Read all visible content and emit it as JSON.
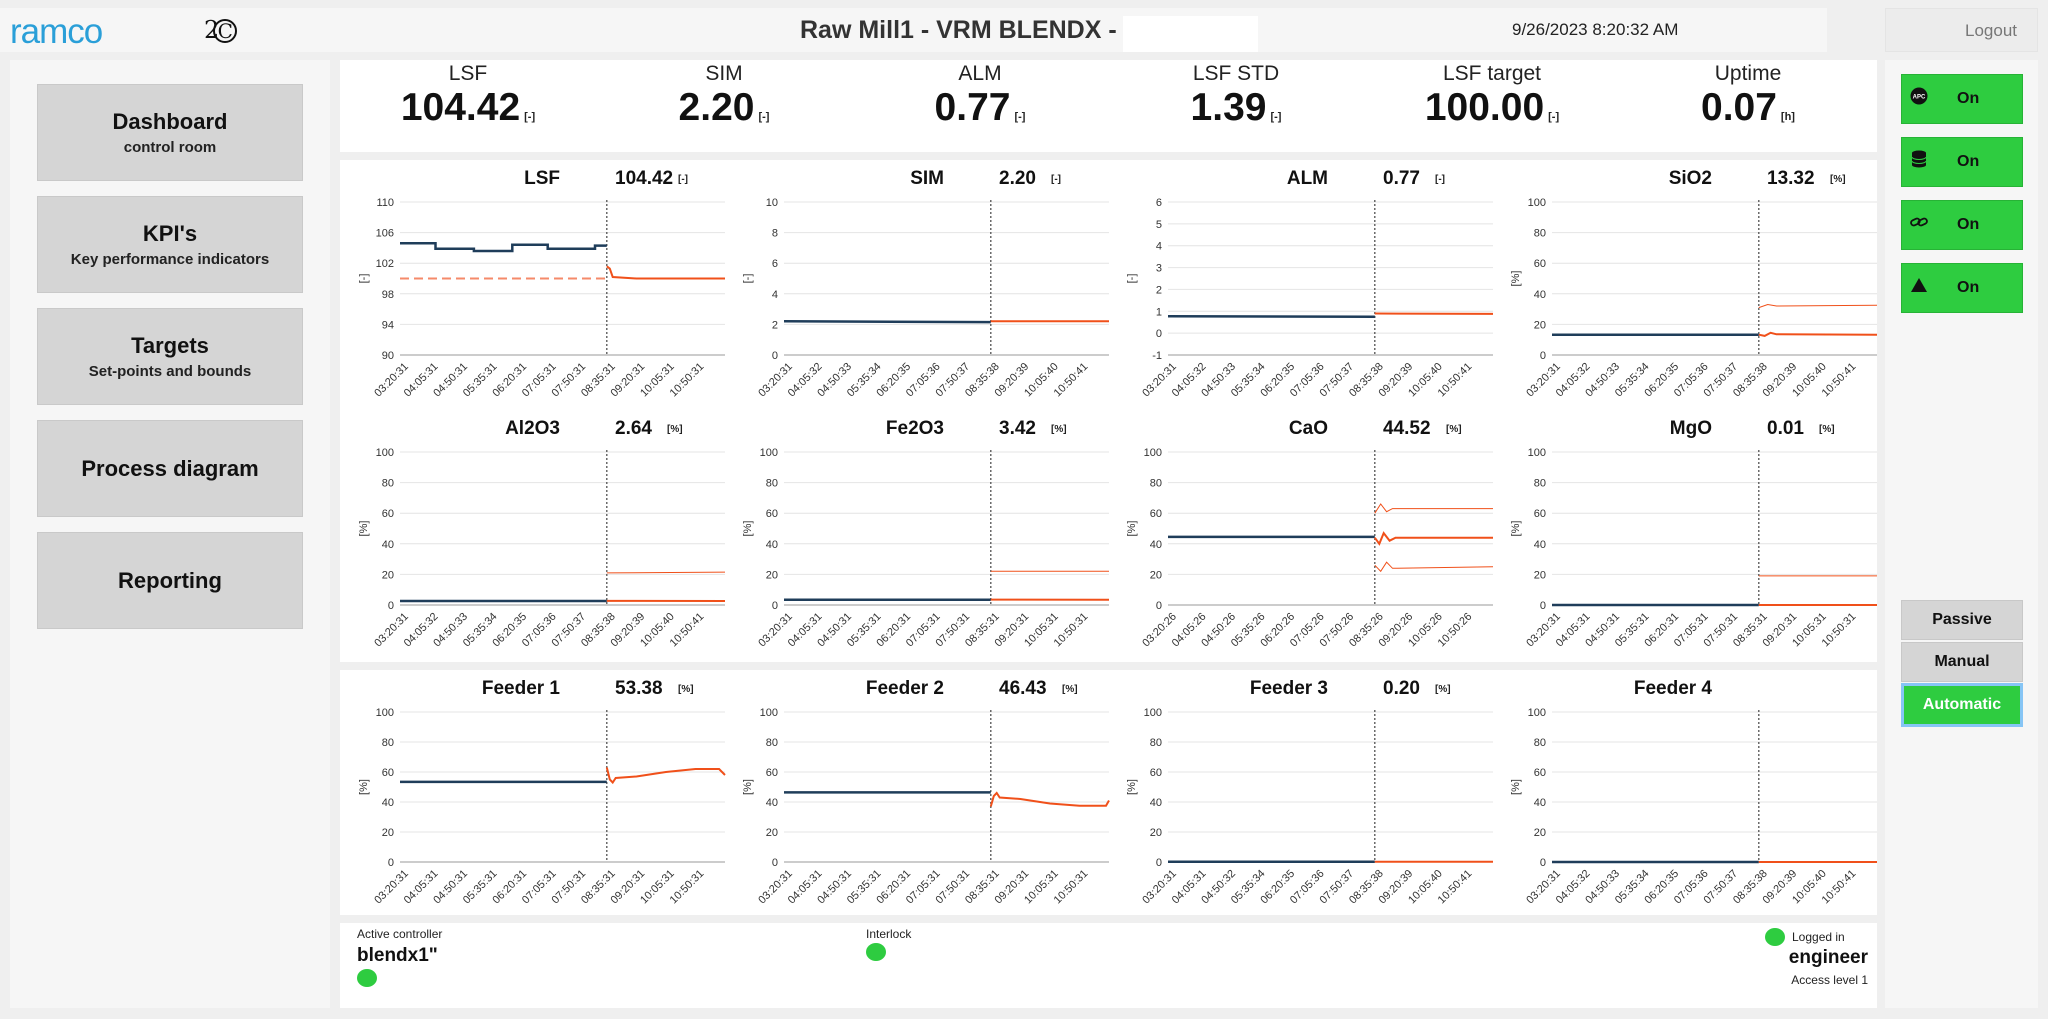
{
  "header": {
    "logo": "ramco",
    "logo2": "2",
    "logo2c": "C",
    "title": "Raw Mill1 - VRM BLENDX -",
    "datetime": "9/26/2023 8:20:32 AM",
    "logout": "Logout"
  },
  "nav": [
    {
      "title": "Dashboard",
      "subtitle": "control room"
    },
    {
      "title": "KPI's",
      "subtitle": "Key performance indicators"
    },
    {
      "title": "Targets",
      "subtitle": "Set-points and bounds"
    },
    {
      "title": "Process diagram",
      "subtitle": ""
    },
    {
      "title": "Reporting",
      "subtitle": ""
    }
  ],
  "kpis": [
    {
      "label": "LSF",
      "value": "104.42",
      "unit": "[-]"
    },
    {
      "label": "SIM",
      "value": "2.20",
      "unit": "[-]"
    },
    {
      "label": "ALM",
      "value": "0.77",
      "unit": "[-]"
    },
    {
      "label": "LSF STD",
      "value": "1.39",
      "unit": "[-]"
    },
    {
      "label": "LSF target",
      "value": "100.00",
      "unit": "[-]"
    },
    {
      "label": "Uptime",
      "value": "0.07",
      "unit": "[h]"
    }
  ],
  "right": {
    "toggles": [
      {
        "icon": "apc-icon",
        "label": "On"
      },
      {
        "icon": "database-icon",
        "label": "On"
      },
      {
        "icon": "link-icon",
        "label": "On"
      },
      {
        "icon": "triangle-icon",
        "label": "On"
      }
    ],
    "modes": [
      "Passive",
      "Manual",
      "Automatic"
    ]
  },
  "status": {
    "active_controller_label": "Active controller",
    "active_controller_value": "blendx1\"",
    "interlock_label": "Interlock",
    "logged_in_label": "Logged in",
    "user": "engineer",
    "access": "Access level 1"
  },
  "colors": {
    "history": "#1f3d5a",
    "prediction": "#f0501a",
    "target": "#f58a6a",
    "green": "#2ecc40"
  },
  "chart_data": [
    {
      "type": "line",
      "title": "LSF",
      "value": "104.42",
      "unit": "[-]",
      "ylabel": "[-]",
      "ylim": [
        90,
        110
      ],
      "yticks": [
        90,
        94,
        98,
        102,
        106,
        110
      ],
      "xticks": [
        "03:20:31",
        "04:05:31",
        "04:50:31",
        "05:35:31",
        "06:20:31",
        "07:05:31",
        "07:50:31",
        "08:35:31",
        "09:20:31",
        "10:05:31",
        "10:50:31"
      ],
      "series": [
        {
          "name": "history",
          "role": "history",
          "points": [
            [
              0,
              104.6
            ],
            [
              1.2,
              104.6
            ],
            [
              1.2,
              103.9
            ],
            [
              2.5,
              103.9
            ],
            [
              2.5,
              103.6
            ],
            [
              3.8,
              103.6
            ],
            [
              3.8,
              104.4
            ],
            [
              5,
              104.4
            ],
            [
              5,
              103.9
            ],
            [
              6.6,
              103.9
            ],
            [
              6.6,
              104.3
            ],
            [
              7,
              104.3
            ]
          ]
        },
        {
          "name": "target",
          "role": "target",
          "points": [
            [
              0,
              100
            ],
            [
              7,
              100
            ]
          ]
        },
        {
          "name": "prediction",
          "role": "prediction",
          "points": [
            [
              7,
              101.6
            ],
            [
              7.1,
              101.3
            ],
            [
              7.2,
              100.2
            ],
            [
              8,
              100
            ],
            [
              11,
              100
            ]
          ]
        }
      ]
    },
    {
      "type": "line",
      "title": "SIM",
      "value": "2.20",
      "unit": "[-]",
      "ylabel": "[-]",
      "ylim": [
        0,
        10
      ],
      "yticks": [
        0,
        2,
        4,
        6,
        8,
        10
      ],
      "xticks": [
        "03:20:31",
        "04:05:32",
        "04:50:33",
        "05:35:34",
        "06:20:35",
        "07:05:36",
        "07:50:37",
        "08:35:38",
        "09:20:39",
        "10:05:40",
        "10:50:41"
      ],
      "series": [
        {
          "name": "history",
          "role": "history",
          "points": [
            [
              0,
              2.2
            ],
            [
              7,
              2.15
            ]
          ]
        },
        {
          "name": "prediction",
          "role": "prediction",
          "points": [
            [
              7,
              2.2
            ],
            [
              11,
              2.2
            ]
          ]
        }
      ]
    },
    {
      "type": "line",
      "title": "ALM",
      "value": "0.77",
      "unit": "[-]",
      "ylabel": "[-]",
      "ylim": [
        -1,
        6
      ],
      "yticks": [
        -1,
        0,
        1,
        2,
        3,
        4,
        5,
        6
      ],
      "xticks": [
        "03:20:31",
        "04:05:32",
        "04:50:33",
        "05:35:34",
        "06:20:35",
        "07:05:36",
        "07:50:37",
        "08:35:38",
        "09:20:39",
        "10:05:40",
        "10:50:41"
      ],
      "series": [
        {
          "name": "history",
          "role": "history",
          "points": [
            [
              0,
              0.77
            ],
            [
              7,
              0.75
            ]
          ]
        },
        {
          "name": "prediction",
          "role": "prediction",
          "points": [
            [
              7,
              0.9
            ],
            [
              11,
              0.88
            ]
          ]
        }
      ]
    },
    {
      "type": "line",
      "title": "SiO2",
      "value": "13.32",
      "unit": "[%]",
      "ylabel": "[%]",
      "ylim": [
        0,
        100
      ],
      "yticks": [
        0,
        20,
        40,
        60,
        80,
        100
      ],
      "xticks": [
        "03:20:31",
        "04:05:32",
        "04:50:33",
        "05:35:34",
        "06:20:35",
        "07:05:36",
        "07:50:37",
        "08:35:38",
        "09:20:39",
        "10:05:40",
        "10:50:41"
      ],
      "series": [
        {
          "name": "history",
          "role": "history",
          "points": [
            [
              0,
              13.3
            ],
            [
              7,
              13.3
            ]
          ]
        },
        {
          "name": "upper",
          "role": "bound",
          "points": [
            [
              7,
              31
            ],
            [
              7.3,
              33
            ],
            [
              7.6,
              32
            ],
            [
              11,
              32.5
            ]
          ]
        },
        {
          "name": "prediction",
          "role": "prediction",
          "points": [
            [
              7,
              13.3
            ],
            [
              7.2,
              12.5
            ],
            [
              7.4,
              14.5
            ],
            [
              7.6,
              13.5
            ],
            [
              11,
              13.3
            ]
          ]
        }
      ]
    },
    {
      "type": "line",
      "title": "Al2O3",
      "value": "2.64",
      "unit": "[%]",
      "ylabel": "[%]",
      "ylim": [
        0,
        100
      ],
      "yticks": [
        0,
        20,
        40,
        60,
        80,
        100
      ],
      "xticks": [
        "03:20:31",
        "04:05:32",
        "04:50:33",
        "05:35:34",
        "06:20:35",
        "07:05:36",
        "07:50:37",
        "08:35:38",
        "09:20:39",
        "10:05:40",
        "10:50:41"
      ],
      "series": [
        {
          "name": "history",
          "role": "history",
          "points": [
            [
              0,
              2.6
            ],
            [
              7,
              2.6
            ]
          ]
        },
        {
          "name": "upper",
          "role": "bound",
          "points": [
            [
              7,
              21
            ],
            [
              11,
              21.5
            ]
          ]
        },
        {
          "name": "prediction",
          "role": "prediction",
          "points": [
            [
              7,
              2.7
            ],
            [
              11,
              2.6
            ]
          ]
        }
      ]
    },
    {
      "type": "line",
      "title": "Fe2O3",
      "value": "3.42",
      "unit": "[%]",
      "ylabel": "[%]",
      "ylim": [
        0,
        100
      ],
      "yticks": [
        0,
        20,
        40,
        60,
        80,
        100
      ],
      "xticks": [
        "03:20:31",
        "04:05:31",
        "04:50:31",
        "05:35:31",
        "06:20:31",
        "07:05:31",
        "07:50:31",
        "08:35:31",
        "09:20:31",
        "10:05:31",
        "10:50:31"
      ],
      "series": [
        {
          "name": "history",
          "role": "history",
          "points": [
            [
              0,
              3.4
            ],
            [
              7,
              3.4
            ]
          ]
        },
        {
          "name": "upper",
          "role": "bound",
          "points": [
            [
              7,
              22
            ],
            [
              11,
              22
            ]
          ]
        },
        {
          "name": "prediction",
          "role": "prediction",
          "points": [
            [
              7,
              3.5
            ],
            [
              11,
              3.4
            ]
          ]
        }
      ]
    },
    {
      "type": "line",
      "title": "CaO",
      "value": "44.52",
      "unit": "[%]",
      "ylabel": "[%]",
      "ylim": [
        0,
        100
      ],
      "yticks": [
        0,
        20,
        40,
        60,
        80,
        100
      ],
      "xticks": [
        "03:20:26",
        "04:05:26",
        "04:50:26",
        "05:35:26",
        "06:20:26",
        "07:05:26",
        "07:50:26",
        "08:35:26",
        "09:20:26",
        "10:05:26",
        "10:50:26"
      ],
      "series": [
        {
          "name": "history",
          "role": "history",
          "points": [
            [
              0,
              44.5
            ],
            [
              7,
              44.5
            ]
          ]
        },
        {
          "name": "upper",
          "role": "bound",
          "points": [
            [
              7,
              60
            ],
            [
              7.2,
              66
            ],
            [
              7.4,
              61
            ],
            [
              7.6,
              63
            ],
            [
              11,
              63
            ]
          ]
        },
        {
          "name": "prediction",
          "role": "prediction",
          "points": [
            [
              7,
              44
            ],
            [
              7.15,
              40
            ],
            [
              7.3,
              47
            ],
            [
              7.5,
              42
            ],
            [
              7.7,
              44
            ],
            [
              11,
              44
            ]
          ]
        },
        {
          "name": "lower",
          "role": "bound",
          "points": [
            [
              7,
              26
            ],
            [
              7.2,
              22
            ],
            [
              7.4,
              28
            ],
            [
              7.6,
              24
            ],
            [
              11,
              25
            ]
          ]
        }
      ]
    },
    {
      "type": "line",
      "title": "MgO",
      "value": "0.01",
      "unit": "[%]",
      "ylabel": "[%]",
      "ylim": [
        0,
        100
      ],
      "yticks": [
        0,
        20,
        40,
        60,
        80,
        100
      ],
      "xticks": [
        "03:20:31",
        "04:05:31",
        "04:50:31",
        "05:35:31",
        "06:20:31",
        "07:05:31",
        "07:50:31",
        "08:35:31",
        "09:20:31",
        "10:05:31",
        "10:50:31"
      ],
      "series": [
        {
          "name": "history",
          "role": "history",
          "points": [
            [
              0,
              0
            ],
            [
              7,
              0
            ]
          ]
        },
        {
          "name": "upper",
          "role": "bound",
          "points": [
            [
              7,
              19
            ],
            [
              11,
              19
            ]
          ]
        },
        {
          "name": "prediction",
          "role": "prediction",
          "points": [
            [
              7,
              0
            ],
            [
              11,
              0
            ]
          ]
        }
      ]
    },
    {
      "type": "line",
      "title": "Feeder 1",
      "value": "53.38",
      "unit": "[%]",
      "ylabel": "[%]",
      "ylim": [
        0,
        100
      ],
      "yticks": [
        0,
        20,
        40,
        60,
        80,
        100
      ],
      "xticks": [
        "03:20:31",
        "04:05:31",
        "04:50:31",
        "05:35:31",
        "06:20:31",
        "07:05:31",
        "07:50:31",
        "08:35:31",
        "09:20:31",
        "10:05:31",
        "10:50:31"
      ],
      "series": [
        {
          "name": "history",
          "role": "history",
          "points": [
            [
              0,
              53.4
            ],
            [
              7,
              53.4
            ]
          ]
        },
        {
          "name": "prediction",
          "role": "prediction",
          "points": [
            [
              7,
              63
            ],
            [
              7.1,
              55
            ],
            [
              7.2,
              53
            ],
            [
              7.3,
              56
            ],
            [
              8,
              57
            ],
            [
              9,
              60
            ],
            [
              10,
              62
            ],
            [
              10.8,
              62
            ],
            [
              11,
              58
            ]
          ]
        }
      ]
    },
    {
      "type": "line",
      "title": "Feeder 2",
      "value": "46.43",
      "unit": "[%]",
      "ylabel": "[%]",
      "ylim": [
        0,
        100
      ],
      "yticks": [
        0,
        20,
        40,
        60,
        80,
        100
      ],
      "xticks": [
        "03:20:31",
        "04:05:31",
        "04:50:31",
        "05:35:31",
        "06:20:31",
        "07:05:31",
        "07:50:31",
        "08:35:31",
        "09:20:31",
        "10:05:31",
        "10:50:31"
      ],
      "series": [
        {
          "name": "history",
          "role": "history",
          "points": [
            [
              0,
              46.4
            ],
            [
              7,
              46.4
            ]
          ]
        },
        {
          "name": "prediction",
          "role": "prediction",
          "points": [
            [
              7,
              37
            ],
            [
              7.1,
              44
            ],
            [
              7.2,
              46
            ],
            [
              7.3,
              43
            ],
            [
              8,
              42
            ],
            [
              9,
              39
            ],
            [
              10,
              37.5
            ],
            [
              10.9,
              37.5
            ],
            [
              11,
              41
            ]
          ]
        }
      ]
    },
    {
      "type": "line",
      "title": "Feeder 3",
      "value": "0.20",
      "unit": "[%]",
      "ylabel": "[%]",
      "ylim": [
        0,
        100
      ],
      "yticks": [
        0,
        20,
        40,
        60,
        80,
        100
      ],
      "xticks": [
        "03:20:31",
        "04:05:31",
        "04:50:32",
        "05:35:34",
        "06:20:35",
        "07:05:36",
        "07:50:37",
        "08:35:38",
        "09:20:39",
        "10:05:40",
        "10:50:41"
      ],
      "series": [
        {
          "name": "history",
          "role": "history",
          "points": [
            [
              0,
              0.2
            ],
            [
              7,
              0.2
            ]
          ]
        },
        {
          "name": "prediction",
          "role": "prediction",
          "points": [
            [
              7,
              0.2
            ],
            [
              11,
              0.2
            ]
          ]
        }
      ]
    },
    {
      "type": "line",
      "title": "Feeder 4",
      "value": "",
      "unit": "",
      "ylabel": "[%]",
      "ylim": [
        0,
        100
      ],
      "yticks": [
        0,
        20,
        40,
        60,
        80,
        100
      ],
      "xticks": [
        "03:20:31",
        "04:05:32",
        "04:50:33",
        "05:35:34",
        "06:20:35",
        "07:05:36",
        "07:50:37",
        "08:35:38",
        "09:20:39",
        "10:05:40",
        "10:50:41"
      ],
      "series": [
        {
          "name": "history",
          "role": "history",
          "points": [
            [
              0,
              0
            ],
            [
              7,
              0
            ]
          ]
        },
        {
          "name": "prediction",
          "role": "prediction",
          "points": [
            [
              7,
              0
            ],
            [
              11,
              0
            ]
          ]
        }
      ]
    }
  ]
}
